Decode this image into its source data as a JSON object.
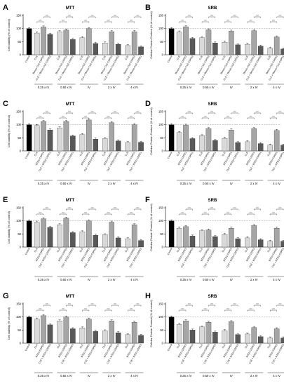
{
  "colors": {
    "control": "#000000",
    "cle": "#d9d9d9",
    "third": "#a6a6a6",
    "combo": "#595959",
    "bar_stroke": "#000000",
    "error_bar": "#000000",
    "sig_line": "#000000",
    "reference_line": "#7a7a7a"
  },
  "chart_data": [
    {
      "panel_label": "A",
      "type": "bar",
      "title": "MTT",
      "ylabel": "Cell viability (% of control)",
      "ylim": [
        0,
        150
      ],
      "yticks": [
        0,
        50,
        100,
        150
      ],
      "grid": false,
      "reference_line": 100,
      "groups": [
        "0.25 x IV",
        "0.50 x IV",
        "IV",
        "2 x IV",
        "4 x IV"
      ],
      "bar_labels": [
        "Control",
        "CLE",
        "Benzo-CLE-CDPE2",
        "CLE + Benzo-CLE-CDPE2",
        "CLE",
        "Benzo-CLE-CDPE2",
        "CLE + Benzo-CLE-CDPE2",
        "CLE",
        "Benzo-CLE-CDPE2",
        "CLE + Benzo-CLE-CDPE2",
        "CLE",
        "Benzo-CLE-CDPE2",
        "CLE + Benzo-CLE-CDPE2",
        "CLE",
        "Benzo-CLE-CDPE2",
        "CLE + Benzo-CLE-CDPE2"
      ],
      "values": [
        100,
        83,
        106,
        78,
        88,
        94,
        58,
        65,
        100,
        43,
        45,
        88,
        40,
        35,
        88,
        30
      ]
    },
    {
      "panel_label": "B",
      "type": "bar",
      "title": "SRB",
      "ylabel": "Cellular Protein Content (% of control)",
      "ylim": [
        0,
        150
      ],
      "yticks": [
        0,
        50,
        100,
        150
      ],
      "grid": false,
      "reference_line": 100,
      "groups": [
        "0.25 x IV",
        "0.50 x IV",
        "IV",
        "2 x IV",
        "4 x IV"
      ],
      "bar_labels": [
        "Control",
        "CLE",
        "Benzo-CLE-CDPE2",
        "CLE + Benzo-CLE-CDPE2",
        "CLE",
        "Benzo-CLE-CDPE2",
        "CLE + Benzo-CLE-CDPE2",
        "CLE",
        "Benzo-CLE-CDPE2",
        "CLE + Benzo-CLE-CDPE2",
        "CLE",
        "Benzo-CLE-CDPE2",
        "CLE + Benzo-CLE-CDPE2",
        "CLE",
        "Benzo-CLE-CDPE2",
        "CLE + Benzo-CLE-CDPE2"
      ],
      "values": [
        100,
        87,
        107,
        62,
        65,
        95,
        45,
        48,
        90,
        38,
        40,
        92,
        33,
        25,
        68,
        22
      ]
    },
    {
      "panel_label": "C",
      "type": "bar",
      "title": "MTT",
      "ylabel": "Cell viability (% of control)",
      "ylim": [
        0,
        150
      ],
      "yticks": [
        0,
        50,
        100,
        150
      ],
      "grid": false,
      "reference_line": 100,
      "groups": [
        "0.25 x IV",
        "0.50 x IV",
        "IV",
        "2 x IV",
        "4 x IV"
      ],
      "bar_labels": [
        "Control",
        "CLE",
        "BTEU-CDPE1",
        "CLE + BTEU-CDPE1",
        "CLE",
        "BTEU-CDPE1",
        "CLE + BTEU-CDPE1",
        "CLE",
        "BTEU-CDPE1",
        "CLE + BTEU-CDPE1",
        "CLE",
        "BTEU-CDPE1",
        "CLE + BTEU-CDPE1",
        "CLE",
        "BTEU-CDPE1",
        "CLE + BTEU-CDPE1"
      ],
      "values": [
        100,
        97,
        112,
        80,
        88,
        112,
        57,
        62,
        118,
        45,
        47,
        108,
        38,
        32,
        100,
        33
      ]
    },
    {
      "panel_label": "D",
      "type": "bar",
      "title": "SRB",
      "ylabel": "Cellular Protein Content (% of control)",
      "ylim": [
        0,
        150
      ],
      "yticks": [
        0,
        50,
        100,
        150
      ],
      "grid": false,
      "reference_line": 100,
      "groups": [
        "0.25 x IV",
        "0.50 x IV",
        "IV",
        "2 x IV",
        "4 x IV"
      ],
      "bar_labels": [
        "Control",
        "CLE",
        "BTEU-CDPE1",
        "CLE + BTEU-CDPE1",
        "CLE",
        "BTEU-CDPE1",
        "CLE + BTEU-CDPE1",
        "CLE",
        "BTEU-CDPE1",
        "CLE + BTEU-CDPE1",
        "CLE",
        "BTEU-CDPE1",
        "CLE + BTEU-CDPE1",
        "CLE",
        "BTEU-CDPE1",
        "CLE + BTEU-CDPE1"
      ],
      "values": [
        100,
        70,
        98,
        47,
        58,
        85,
        40,
        48,
        80,
        32,
        35,
        85,
        28,
        22,
        78,
        22
      ]
    },
    {
      "panel_label": "E",
      "type": "bar",
      "title": "MTT",
      "ylabel": "Cell viability (% of control)",
      "ylim": [
        0,
        150
      ],
      "yticks": [
        0,
        50,
        100,
        150
      ],
      "grid": false,
      "reference_line": 100,
      "groups": [
        "0.25 x IV",
        "0.50 x IV",
        "IV",
        "2 x IV",
        "4 x IV"
      ],
      "bar_labels": [
        "Control",
        "CLE",
        "BTEU-CDPE2",
        "CLE + BTEU-CDPE2",
        "CLE",
        "BTEU-CDPE2",
        "CLE + BTEU-CDPE2",
        "CLE",
        "BTEU-CDPE2",
        "CLE + BTEU-CDPE2",
        "CLE",
        "BTEU-CDPE2",
        "CLE + BTEU-CDPE2",
        "CLE",
        "BTEU-CDPE2",
        "CLE + BTEU-CDPE2"
      ],
      "values": [
        100,
        95,
        108,
        75,
        85,
        110,
        55,
        58,
        100,
        45,
        47,
        95,
        35,
        32,
        85,
        25
      ]
    },
    {
      "panel_label": "F",
      "type": "bar",
      "title": "SRB",
      "ylabel": "Cellular Protein Content (% of control)",
      "ylim": [
        0,
        150
      ],
      "yticks": [
        0,
        50,
        100,
        150
      ],
      "grid": false,
      "reference_line": 100,
      "groups": [
        "0.25 x IV",
        "0.50 x IV",
        "IV",
        "2 x IV",
        "4 x IV"
      ],
      "bar_labels": [
        "Control",
        "CLE",
        "BTEU-CDPE2",
        "CLE + BTEU-CDPE2",
        "CLE",
        "BTEU-CDPE2",
        "CLE + BTEU-CDPE2",
        "CLE",
        "BTEU-CDPE2",
        "CLE + BTEU-CDPE2",
        "CLE",
        "BTEU-CDPE2",
        "CLE + BTEU-CDPE2",
        "CLE",
        "BTEU-CDPE2",
        "CLE + BTEU-CDPE2"
      ],
      "values": [
        100,
        72,
        78,
        42,
        62,
        65,
        40,
        48,
        72,
        32,
        35,
        82,
        28,
        22,
        72,
        22
      ]
    },
    {
      "panel_label": "G",
      "type": "bar",
      "title": "MTT",
      "ylabel": "Cell viability (% of control)",
      "ylim": [
        0,
        150
      ],
      "yticks": [
        0,
        50,
        100,
        150
      ],
      "grid": false,
      "reference_line": 100,
      "groups": [
        "0.25 x IV",
        "0.50 x IV",
        "IV",
        "2 x IV",
        "4 x IV"
      ],
      "bar_labels": [
        "Control",
        "CLE",
        "BTEU-CDPE3",
        "CLE + BTEU-CDPE3",
        "CLE",
        "BTEU-CDPE3",
        "CLE + BTEU-CDPE3",
        "CLE",
        "BTEU-CDPE3",
        "CLE + BTEU-CDPE3",
        "CLE",
        "BTEU-CDPE3",
        "CLE + BTEU-CDPE3",
        "CLE",
        "BTEU-CDPE3",
        "CLE + BTEU-CDPE3"
      ],
      "values": [
        100,
        92,
        105,
        70,
        85,
        100,
        55,
        58,
        92,
        45,
        47,
        85,
        40,
        33,
        80,
        30
      ]
    },
    {
      "panel_label": "H",
      "type": "bar",
      "title": "SRB",
      "ylabel": "Cellular Protein Content (% of control)",
      "ylim": [
        0,
        150
      ],
      "yticks": [
        0,
        50,
        100,
        150
      ],
      "grid": false,
      "reference_line": 100,
      "groups": [
        "0.25 x IV",
        "0.50 x IV",
        "IV",
        "2 x IV",
        "4 x IV"
      ],
      "bar_labels": [
        "Control",
        "CLE",
        "BTEU-CDPE3",
        "CLE + BTEU-CDPE3",
        "CLE",
        "BTEU-CDPE3",
        "CLE + BTEU-CDPE3",
        "CLE",
        "BTEU-CDPE3",
        "CLE + BTEU-CDPE3",
        "CLE",
        "BTEU-CDPE3",
        "CLE + BTEU-CDPE3",
        "CLE",
        "BTEU-CDPE3",
        "CLE + BTEU-CDPE3"
      ],
      "values": [
        100,
        72,
        85,
        50,
        62,
        80,
        42,
        48,
        82,
        33,
        35,
        60,
        25,
        20,
        55,
        20
      ]
    }
  ]
}
